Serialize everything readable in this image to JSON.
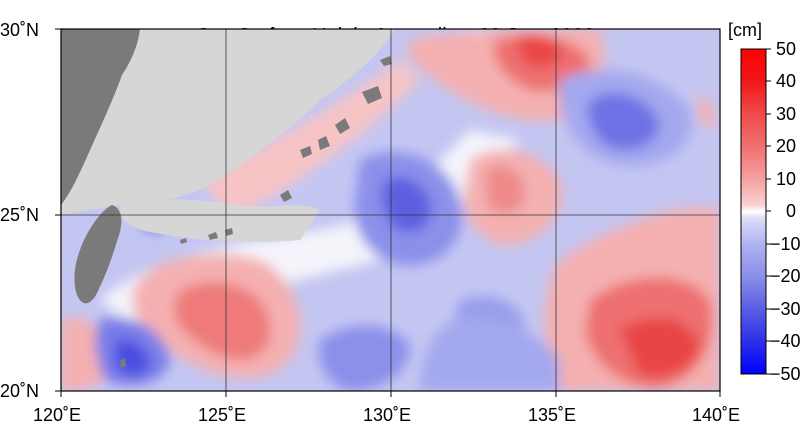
{
  "title": "Sea Surface Height Anomalies",
  "date": "09 Jun. 2022",
  "colorbar": {
    "unit": "[cm]",
    "labels": [
      "50",
      "40",
      "30",
      "20",
      "10",
      "0",
      "−10",
      "−20",
      "−30",
      "−40",
      "−50"
    ],
    "colors": {
      "positive_max": "#ff0000",
      "positive_mid": "#f07070",
      "positive_low": "#f6c4c4",
      "zero": "#ffffff",
      "negative_low": "#c8cbf4",
      "negative_mid": "#7a7ee8",
      "negative_max": "#0000ff"
    }
  },
  "axes": {
    "longitude_labels": [
      "120˚E",
      "125˚E",
      "130˚E",
      "135˚E",
      "140˚E"
    ],
    "latitude_labels": [
      "30˚N",
      "25˚N",
      "20˚N"
    ]
  },
  "land_color": "#7a7a7a",
  "missing_color": "#d6d6d6"
}
